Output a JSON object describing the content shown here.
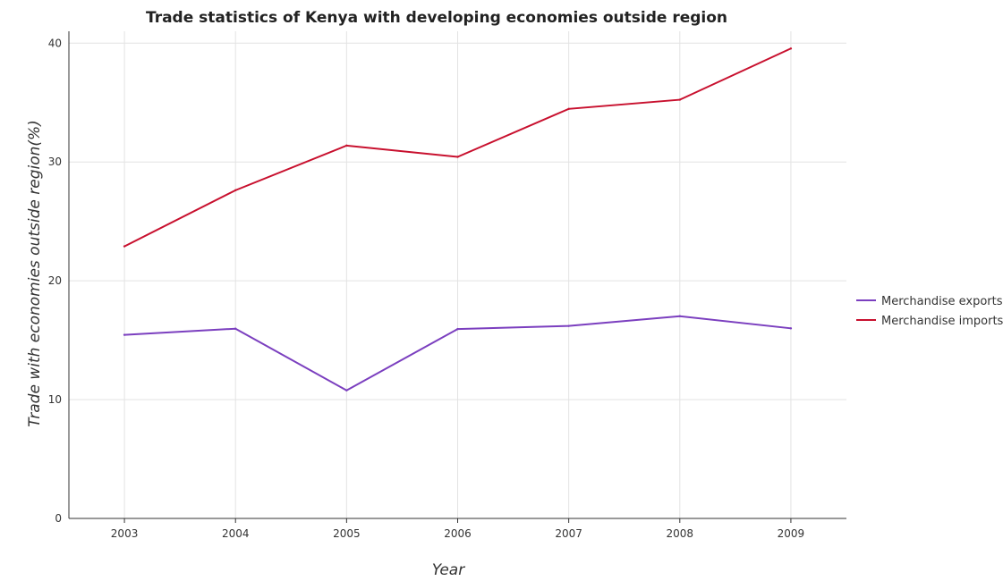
{
  "colors": {
    "merchandise_exports": "#7b3fbf",
    "merchandise_imports": "#c8102e",
    "grid": "#e3e3e3",
    "axis": "#333333"
  },
  "chart_data": {
    "type": "line",
    "title": "Trade statistics of Kenya with developing economies outside region",
    "xlabel": "Year",
    "ylabel": "Trade with economies outside region(%)",
    "categories": [
      "2003",
      "2004",
      "2005",
      "2006",
      "2007",
      "2008",
      "2009"
    ],
    "ylim": [
      0,
      41
    ],
    "yticks": [
      0,
      10,
      20,
      30,
      40
    ],
    "grid": true,
    "legend_position": "right",
    "series": [
      {
        "name": "Merchandise exports",
        "color_key": "merchandise_exports",
        "values": [
          15.45,
          15.97,
          10.78,
          15.94,
          16.2,
          17.02,
          16.0
        ]
      },
      {
        "name": "Merchandise imports",
        "color_key": "merchandise_imports",
        "values": [
          22.9,
          27.62,
          31.38,
          30.43,
          34.47,
          35.24,
          39.55
        ]
      }
    ]
  }
}
